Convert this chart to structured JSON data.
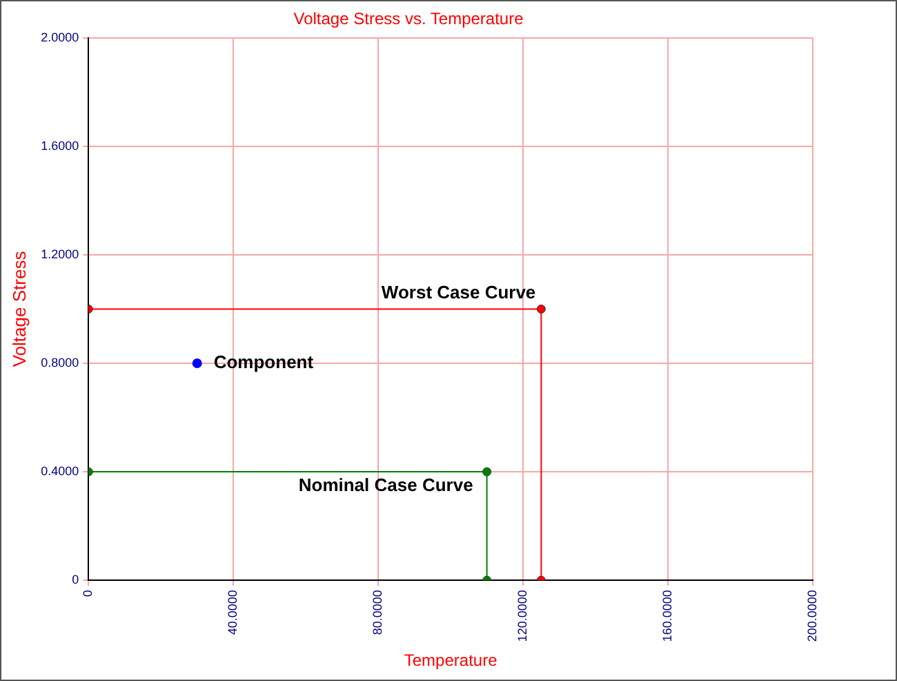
{
  "chart_data": {
    "type": "line",
    "title": "Voltage Stress vs. Temperature",
    "xlabel": "Temperature",
    "ylabel": "Voltage Stress",
    "xlim": [
      0,
      200
    ],
    "xticks": [
      0,
      {
        "value": 40,
        "label": "40.0000"
      },
      {
        "value": 80,
        "label": "80.0000"
      },
      {
        "value": 120,
        "label": "120.0000"
      },
      {
        "value": 160,
        "label": "160.0000"
      },
      {
        "value": 200,
        "label": "200.0000"
      }
    ],
    "ylim": [
      0,
      2
    ],
    "yticks": [
      0,
      {
        "value": 0.4,
        "label": "0.4000"
      },
      {
        "value": 0.8,
        "label": "0.8000"
      },
      {
        "value": 1.2,
        "label": "1.2000"
      },
      {
        "value": 1.6,
        "label": "1.6000"
      },
      {
        "value": 2,
        "label": "2.0000"
      }
    ],
    "grid": true,
    "legend": false,
    "marker": "circle",
    "series": [
      {
        "name": "Worst Case Curve",
        "color": "#ff0000",
        "x": [
          0,
          125,
          125
        ],
        "values": [
          1,
          1,
          0
        ]
      },
      {
        "name": "Nominal Case Curve",
        "color": "#008000",
        "x": [
          0,
          110,
          110
        ],
        "values": [
          0.4,
          0.4,
          0
        ]
      },
      {
        "name": "Component",
        "type": "scatter",
        "color": "#0000ff",
        "x": [
          30
        ],
        "values": [
          0.8
        ]
      }
    ]
  }
}
